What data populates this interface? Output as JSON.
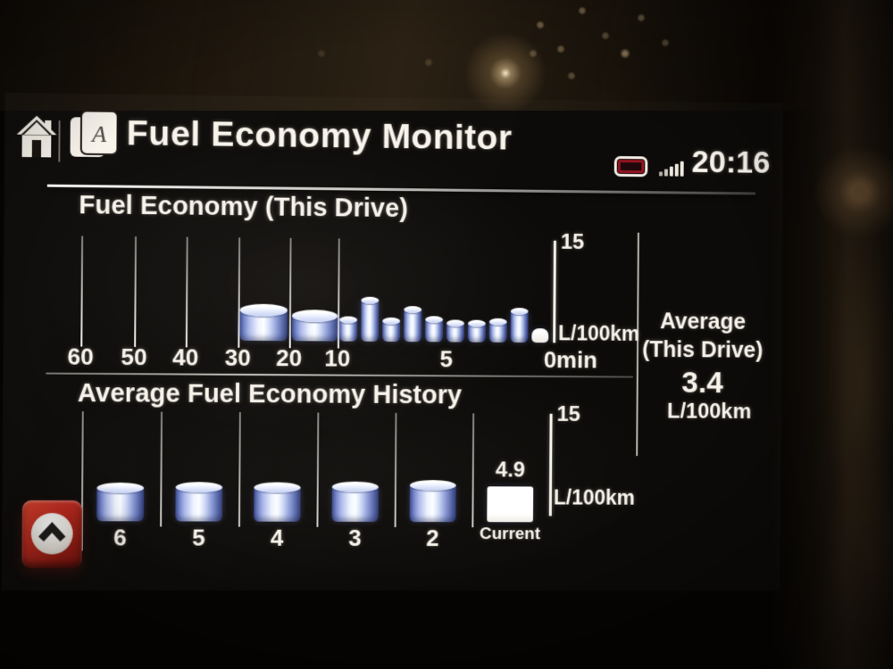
{
  "header": {
    "title": "Fuel Economy Monitor",
    "clock": "20:16",
    "home_icon": "home-icon",
    "applications_icon": "applications-icon",
    "battery_icon": "battery-low-icon",
    "signal_icon": "signal-strength-icon"
  },
  "average_panel": {
    "label_line1": "Average",
    "label_line2": "(This Drive)",
    "value": "3.4",
    "unit": "L/100km"
  },
  "scroll_button": {
    "icon": "chevron-up-icon"
  },
  "colors": {
    "bar_blue_dark": "#3c4b92",
    "bar_blue_mid": "#8897d2",
    "bar_highlight": "#f7fafe",
    "button_red": "#b7271c",
    "battery_red": "#93141f",
    "text": "#f3efe7"
  },
  "chart_data": [
    {
      "type": "bar",
      "title": "Fuel Economy (This Drive)",
      "ylabel": "L/100km",
      "ylim": [
        0,
        15
      ],
      "y_tick_labels": [
        "15"
      ],
      "x_unit": "minutes ago",
      "x_tick_labels": [
        "60",
        "50",
        "40",
        "30",
        "20",
        "10",
        "5",
        "0min"
      ],
      "bars": [
        {
          "x": "30-20 min ago",
          "value": 4.4,
          "style": "blue-wide"
        },
        {
          "x": "20-10 min ago",
          "value": 3.7,
          "style": "blue-wide"
        },
        {
          "x": "10 min ago",
          "value": 3.1,
          "style": "blue"
        },
        {
          "x": "9 min ago",
          "value": 6.0,
          "style": "blue"
        },
        {
          "x": "8 min ago",
          "value": 3.0,
          "style": "blue"
        },
        {
          "x": "7 min ago",
          "value": 4.7,
          "style": "blue"
        },
        {
          "x": "6 min ago",
          "value": 3.3,
          "style": "blue"
        },
        {
          "x": "5 min ago",
          "value": 2.7,
          "style": "blue"
        },
        {
          "x": "4 min ago",
          "value": 2.7,
          "style": "blue"
        },
        {
          "x": "3 min ago",
          "value": 3.0,
          "style": "blue"
        },
        {
          "x": "2 min ago",
          "value": 4.6,
          "style": "blue"
        },
        {
          "x": "1 min ago",
          "value": 2.1,
          "style": "white"
        }
      ]
    },
    {
      "type": "bar",
      "title": "Average Fuel Economy History",
      "ylabel": "L/100km",
      "ylim": [
        0,
        15
      ],
      "y_tick_labels": [
        "15"
      ],
      "categories": [
        "6",
        "5",
        "4",
        "3",
        "2",
        "Current"
      ],
      "values": [
        4.6,
        4.7,
        4.7,
        4.8,
        5.0,
        4.9
      ],
      "bar_styles": [
        "blue",
        "blue",
        "blue",
        "blue",
        "blue",
        "white"
      ],
      "value_labels": [
        null,
        null,
        null,
        null,
        null,
        "4.9"
      ]
    }
  ]
}
